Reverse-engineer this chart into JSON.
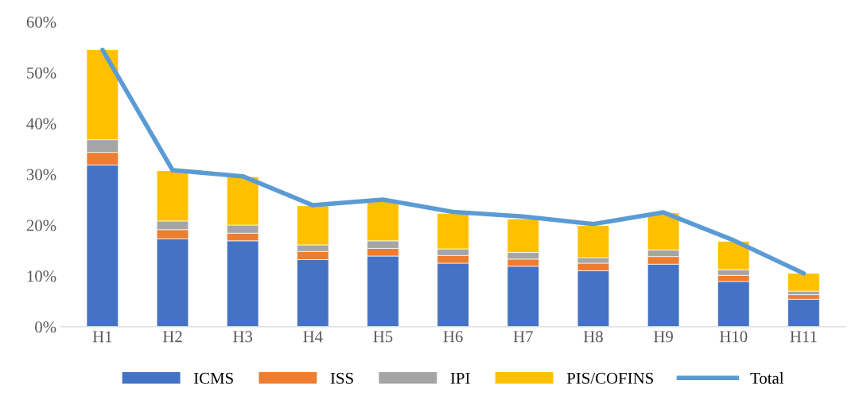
{
  "chart_data": {
    "type": "bar",
    "stacked": true,
    "categories": [
      "H1",
      "H2",
      "H3",
      "H4",
      "H5",
      "H6",
      "H7",
      "H8",
      "H9",
      "H10",
      "H11"
    ],
    "series": [
      {
        "name": "ICMS",
        "color": "#4472c4",
        "values": [
          31.8,
          17.3,
          16.9,
          13.2,
          13.9,
          12.5,
          11.9,
          11.0,
          12.3,
          8.9,
          5.4
        ]
      },
      {
        "name": "ISS",
        "color": "#ed7d31",
        "values": [
          2.5,
          1.8,
          1.5,
          1.6,
          1.5,
          1.5,
          1.4,
          1.5,
          1.5,
          1.2,
          0.9
        ]
      },
      {
        "name": "IPI",
        "color": "#a5a5a5",
        "values": [
          2.5,
          1.7,
          1.6,
          1.3,
          1.5,
          1.3,
          1.3,
          1.1,
          1.3,
          1.1,
          0.7
        ]
      },
      {
        "name": "PIS/COFINS",
        "color": "#ffc000",
        "values": [
          17.7,
          9.9,
          9.5,
          7.7,
          7.8,
          7.0,
          6.6,
          6.3,
          7.3,
          5.6,
          3.5
        ]
      },
      {
        "name": "Total",
        "type": "line",
        "color": "#5b9bd5",
        "values": [
          54.5,
          30.8,
          29.6,
          23.9,
          25.0,
          22.6,
          21.7,
          20.2,
          22.5,
          17.0,
          10.5
        ]
      }
    ],
    "ylim": [
      0,
      60
    ],
    "yticks": [
      {
        "value": 0,
        "label": "0%"
      },
      {
        "value": 10,
        "label": "10%"
      },
      {
        "value": 20,
        "label": "20%"
      },
      {
        "value": 30,
        "label": "30%"
      },
      {
        "value": 40,
        "label": "40%"
      },
      {
        "value": 50,
        "label": "50%"
      },
      {
        "value": 60,
        "label": "60%"
      }
    ],
    "grid": false,
    "legend": "bottom",
    "marker": "none",
    "line_style": "solid"
  }
}
